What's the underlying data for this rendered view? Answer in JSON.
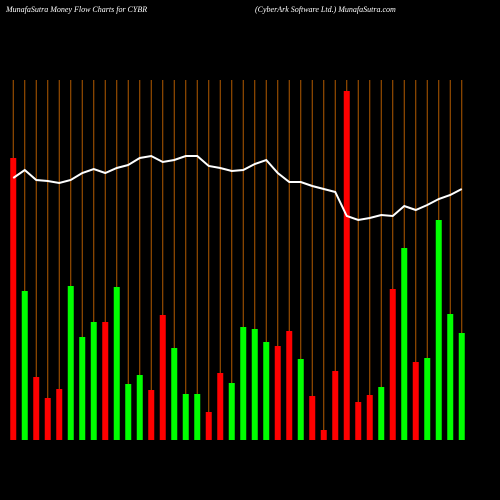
{
  "chart_data": {
    "type": "bar",
    "title": "MunafaSutra  Money Flow  Charts for CYBR",
    "subtitle": "(CyberArk Software   Ltd.) MunafaSutra.com",
    "categories": [
      null,
      null,
      null,
      null,
      null,
      null,
      null,
      null,
      null,
      null,
      null,
      null,
      null,
      null,
      null,
      null,
      null,
      null,
      null,
      null,
      null,
      null,
      null,
      null,
      null,
      null,
      null,
      null,
      null,
      null,
      null,
      null,
      null,
      null,
      null,
      null,
      null,
      null,
      null,
      null
    ],
    "values": [
      282,
      149,
      63,
      42,
      51,
      154,
      103,
      118,
      118,
      153,
      56,
      65,
      50,
      125,
      92,
      46,
      46,
      28,
      67,
      57,
      113,
      111,
      98,
      94,
      109,
      81,
      44,
      10,
      69,
      349,
      38,
      45,
      53,
      151,
      192,
      78,
      82,
      220,
      126,
      107
    ],
    "colors": [
      "#ff0000",
      "#00ff00",
      "#ff0000",
      "#ff0000",
      "#ff0000",
      "#00ff00",
      "#00ff00",
      "#00ff00",
      "#ff0000",
      "#00ff00",
      "#00ff00",
      "#00ff00",
      "#ff0000",
      "#ff0000",
      "#00ff00",
      "#00ff00",
      "#00ff00",
      "#ff0000",
      "#ff0000",
      "#00ff00",
      "#00ff00",
      "#00ff00",
      "#00ff00",
      "#ff0000",
      "#ff0000",
      "#00ff00",
      "#ff0000",
      "#ff0000",
      "#ff0000",
      "#ff0000",
      "#ff0000",
      "#ff0000",
      "#00ff00",
      "#ff0000",
      "#00ff00",
      "#ff0000",
      "#00ff00",
      "#00ff00",
      "#00ff00",
      "#00ff00"
    ],
    "line_values": [
      262,
      270,
      260,
      259,
      257,
      260,
      267,
      271,
      267,
      272,
      275,
      282,
      284,
      278,
      280,
      284,
      284,
      274,
      272,
      269,
      270,
      276,
      280,
      267,
      258,
      258,
      254,
      251,
      248,
      224,
      220,
      222,
      225,
      224,
      234,
      230,
      235,
      241,
      245,
      251
    ],
    "line_color": "#ffffff",
    "grid_color": "#b35a00",
    "ylim": [
      0,
      350
    ]
  }
}
